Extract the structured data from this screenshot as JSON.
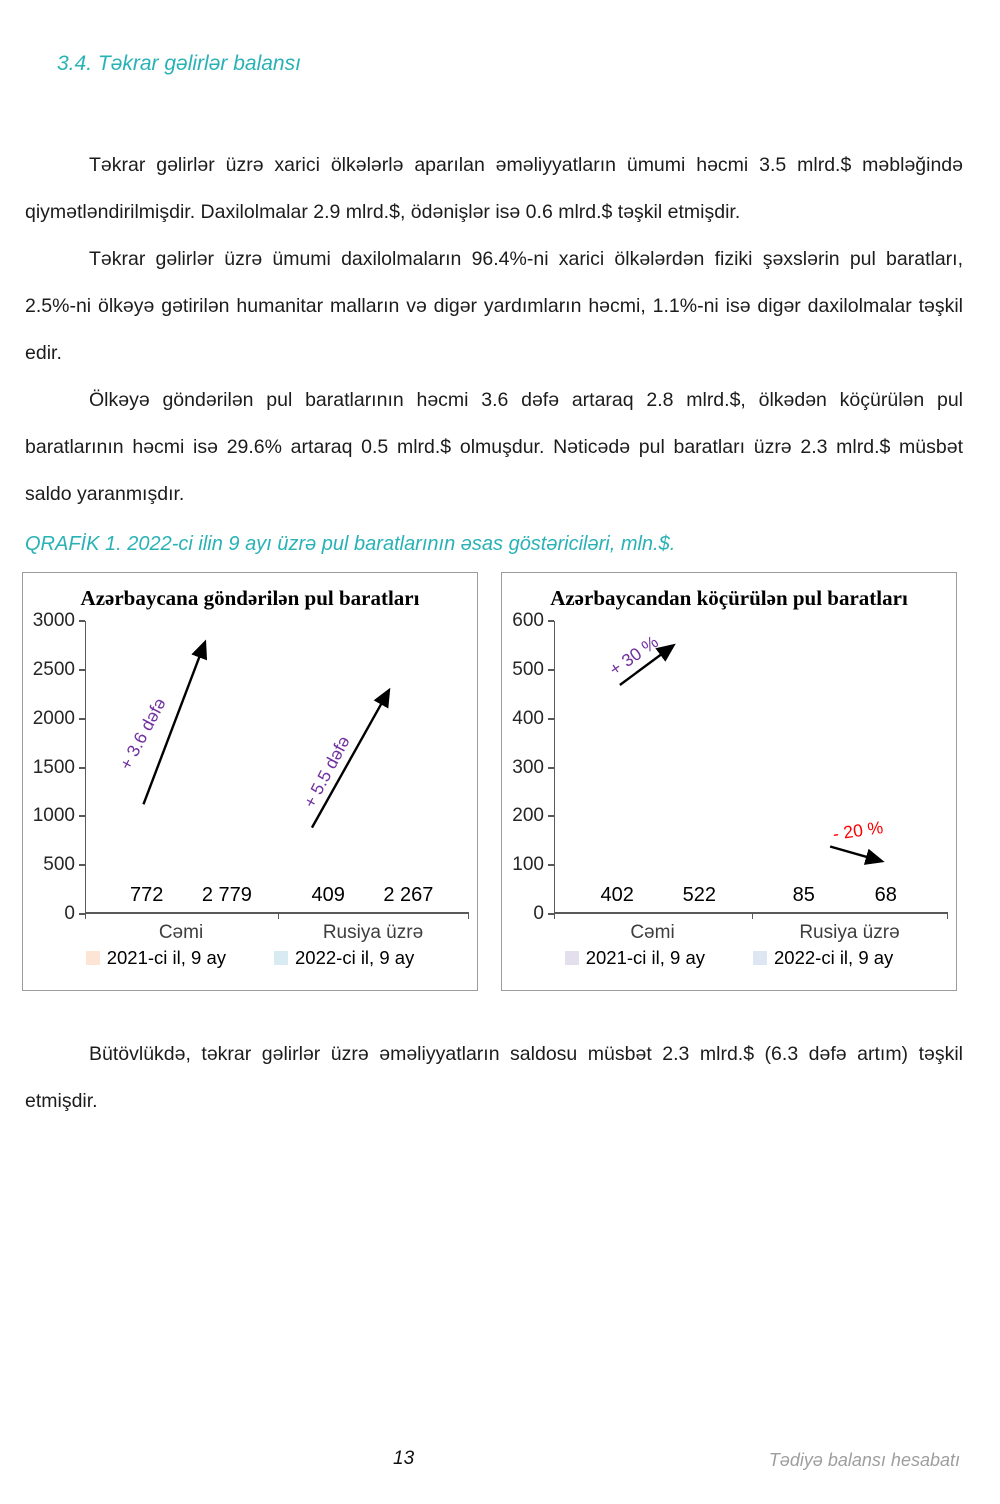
{
  "heading": "3.4. Təkrar gəlirlər balansı",
  "paragraphs": [
    "Təkrar gəlirlər üzrə xarici ölkələrlə aparılan əməliyyatların ümumi həcmi 3.5 mlrd.$ məbləğində qiymətləndirilmişdir. Daxilolmalar 2.9 mlrd.$, ödənişlər isə 0.6 mlrd.$ təşkil etmişdir.",
    "Təkrar gəlirlər üzrə ümumi daxilolmaların 96.4%-ni xarici ölkələrdən fiziki şəxslərin pul baratları, 2.5%-ni ölkəyə gətirilən humanitar malların və digər yardımların həcmi, 1.1%-ni isə digər daxilolmalar təşkil edir.",
    "Ölkəyə göndərilən pul baratlarının həcmi 3.6 dəfə artaraq 2.8 mlrd.$, ölkədən köçürülən pul baratlarının həcmi isə 29.6% artaraq 0.5 mlrd.$ olmuşdur. Nəticədə pul baratları üzrə 2.3 mlrd.$ müsbət saldo yaranmışdır."
  ],
  "chart_caption": "QRAFİK 1. 2022-ci ilin 9 ayı üzrə pul baratlarının əsas göstəriciləri, mln.$.",
  "closing_paragraph": "Bütövlükdə, təkrar gəlirlər üzrə əməliyyatların saldosu müsbət 2.3 mlrd.$ (6.3 dəfə artım) təşkil etmişdir.",
  "footer": {
    "page_number": "13",
    "report_title": "Tədiyə balansı hesabatı"
  },
  "colors": {
    "accent_teal": "#29b2b6",
    "annotation_purple": "#7030a0",
    "annotation_red": "#ff0000",
    "left_2021_bar": "#fce5d5",
    "left_2022_bar": "#d9ebf2",
    "right_2021_bar": "#e3dfed",
    "right_2022_bar": "#dde6f2"
  },
  "chart_data": [
    {
      "type": "bar",
      "title": "Azərbaycana göndərilən pul baratları",
      "categories": [
        "Cəmi",
        "Rusiya üzrə"
      ],
      "series": [
        {
          "name": "2021-ci il, 9 ay",
          "values": [
            772,
            409
          ],
          "color": "#fce5d5"
        },
        {
          "name": "2022-ci il, 9 ay",
          "values": [
            2779,
            2267
          ],
          "color": "#d9ebf2"
        }
      ],
      "value_labels": [
        [
          "772",
          "409"
        ],
        [
          "2 779",
          "2 267"
        ]
      ],
      "ylim": [
        0,
        3000
      ],
      "yticks": [
        "3000",
        "2500",
        "2000",
        "1500",
        "1000",
        "500",
        "0"
      ],
      "grid": false,
      "legend_position": "bottom",
      "annotations": [
        {
          "text": "+ 3.6 dəfə",
          "color": "#7030a0",
          "rotation": -62
        },
        {
          "text": "+ 5.5 dəfə",
          "color": "#7030a0",
          "rotation": -62
        }
      ]
    },
    {
      "type": "bar",
      "title": "Azərbaycandan köçürülən pul baratları",
      "categories": [
        "Cəmi",
        "Rusiya üzrə"
      ],
      "series": [
        {
          "name": "2021-ci il, 9 ay",
          "values": [
            402,
            85
          ],
          "color": "#e3dfed"
        },
        {
          "name": "2022-ci il, 9 ay",
          "values": [
            522,
            68
          ],
          "color": "#dde6f2"
        }
      ],
      "value_labels": [
        [
          "402",
          "85"
        ],
        [
          "522",
          "68"
        ]
      ],
      "ylim": [
        0,
        600
      ],
      "yticks": [
        "600",
        "500",
        "400",
        "300",
        "200",
        "100",
        "0"
      ],
      "grid": false,
      "legend_position": "bottom",
      "annotations": [
        {
          "text": "+ 30 %",
          "color": "#7030a0",
          "rotation": -35
        },
        {
          "text": "- 20 %",
          "color": "#ff0000",
          "rotation": -8
        }
      ]
    }
  ]
}
